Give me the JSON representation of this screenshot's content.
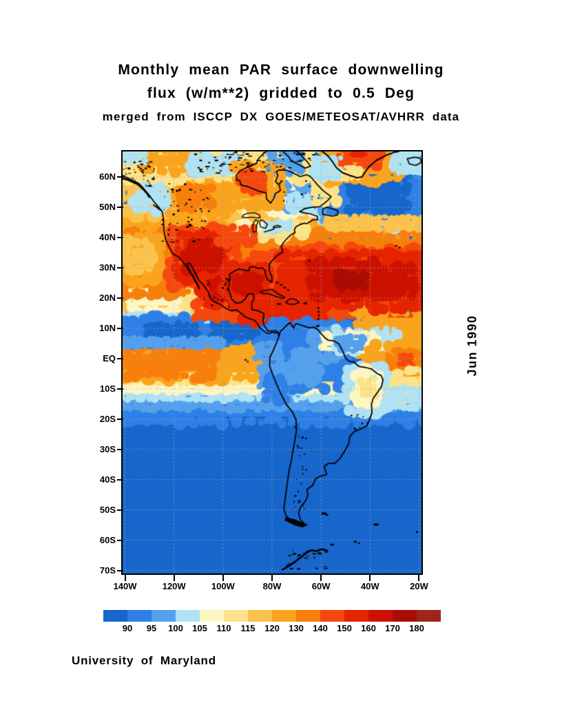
{
  "title": {
    "line1": "Monthly mean PAR surface downwelling",
    "line2": "flux (w/m**2) gridded to 0.5 Deg",
    "line3": "merged from ISCCP DX GOES/METEOSAT/AVHRR data"
  },
  "date_label": "Jun 1990",
  "credit": "University of Maryland",
  "map": {
    "lat_ticks": [
      {
        "label": "60N",
        "lat": 60
      },
      {
        "label": "50N",
        "lat": 50
      },
      {
        "label": "40N",
        "lat": 40
      },
      {
        "label": "30N",
        "lat": 30
      },
      {
        "label": "20N",
        "lat": 20
      },
      {
        "label": "10N",
        "lat": 10
      },
      {
        "label": "EQ",
        "lat": 0
      },
      {
        "label": "10S",
        "lat": -10
      },
      {
        "label": "20S",
        "lat": -20
      },
      {
        "label": "30S",
        "lat": -30
      },
      {
        "label": "40S",
        "lat": -40
      },
      {
        "label": "50S",
        "lat": -50
      },
      {
        "label": "60S",
        "lat": -60
      },
      {
        "label": "70S",
        "lat": -70
      }
    ],
    "lon_ticks": [
      {
        "label": "140W",
        "lon": -140
      },
      {
        "label": "120W",
        "lon": -120
      },
      {
        "label": "100W",
        "lon": -100
      },
      {
        "label": "80W",
        "lon": -80
      },
      {
        "label": "60W",
        "lon": -60
      },
      {
        "label": "40W",
        "lon": -40
      },
      {
        "label": "20W",
        "lon": -20
      }
    ]
  },
  "colorbar": {
    "tick_labels": [
      "90",
      "95",
      "100",
      "105",
      "110",
      "115",
      "120",
      "130",
      "140",
      "150",
      "160",
      "170",
      "180"
    ]
  },
  "chart_data": {
    "type": "heatmap",
    "title": "Monthly mean PAR surface downwelling flux (w/m**2) gridded to 0.5 Deg",
    "subtitle": "merged from ISCCP DX GOES/METEOSAT/AVHRR data",
    "date": "Jun 1990",
    "units": "w/m**2",
    "lon_range": [
      -141,
      -19
    ],
    "lat_range": [
      -71,
      68.5
    ],
    "gridlines": {
      "lat_interval": 10,
      "lon_interval": 20,
      "style": "dotted"
    },
    "scale": {
      "thresholds": [
        90,
        95,
        100,
        105,
        110,
        115,
        120,
        130,
        140,
        150,
        160,
        170,
        180
      ],
      "colors": [
        "#1766cb",
        "#2e80e6",
        "#55a0ec",
        "#b0e2f3",
        "#fdf6c3",
        "#fce389",
        "#fbc34c",
        "#faa41d",
        "#f87f0b",
        "#f5480d",
        "#e62400",
        "#cc1100",
        "#a80d04",
        "#9e261b"
      ]
    },
    "regions": [
      {
        "name": "southern-ocean-base",
        "lon": [
          -141,
          -19
        ],
        "lat": [
          68.5,
          -71
        ],
        "value": 88
      },
      {
        "name": "s-transition-band-1",
        "lon": [
          -141,
          -19
        ],
        "lat": [
          -13.5,
          -20.5
        ],
        "value": 92
      },
      {
        "name": "s-transition-band-2",
        "lon": [
          -141,
          -19
        ],
        "lat": [
          -11,
          -16
        ],
        "value": 97
      },
      {
        "name": "s-transition-band-3",
        "lon": [
          -141,
          -19
        ],
        "lat": [
          -8.5,
          -13
        ],
        "value": 102
      },
      {
        "name": "s-transition-band-4",
        "lon": [
          -141,
          -19
        ],
        "lat": [
          -6.5,
          -10.5
        ],
        "value": 107
      },
      {
        "name": "s-transition-band-5",
        "lon": [
          -141,
          -30
        ],
        "lat": [
          -5,
          -8
        ],
        "value": 112
      },
      {
        "name": "equatorial-pacific",
        "lon": [
          -141,
          -77
        ],
        "lat": [
          6,
          -6
        ],
        "value": 125
      },
      {
        "name": "equatorial-pacific-core",
        "lon": [
          -141,
          -104
        ],
        "lat": [
          3,
          -5.5
        ],
        "value": 135
      },
      {
        "name": "ne-trade-band",
        "lon": [
          -141,
          -96
        ],
        "lat": [
          23,
          13
        ],
        "value": 117
      },
      {
        "name": "ne-trade-cream-1",
        "lon": [
          -138,
          -118
        ],
        "lat": [
          21.5,
          16.5
        ],
        "value": 107
      },
      {
        "name": "ne-trade-cream-2",
        "lon": [
          -116,
          -104
        ],
        "lat": [
          22,
          17
        ],
        "value": 112
      },
      {
        "name": "itcz-north-fringe",
        "lon": [
          -141,
          -88
        ],
        "lat": [
          14.5,
          11.5
        ],
        "value": 102
      },
      {
        "name": "itcz-pacific-blue",
        "lon": [
          -141,
          -77
        ],
        "lat": [
          13,
          6
        ],
        "value": 92
      },
      {
        "name": "itcz-dark-core-west",
        "lon": [
          -131,
          -111
        ],
        "lat": [
          11,
          7
        ],
        "value": 88
      },
      {
        "name": "itcz-dark-core-east",
        "lon": [
          -104,
          -86
        ],
        "lat": [
          12.5,
          7.5
        ],
        "value": 88
      },
      {
        "name": "itcz-south-fringe",
        "lon": [
          -141,
          -100
        ],
        "lat": [
          6.5,
          4
        ],
        "value": 97
      },
      {
        "name": "midlat-orange",
        "lon": [
          -141,
          -19
        ],
        "lat": [
          49,
          39
        ],
        "value": 125
      },
      {
        "name": "subtropical-orange",
        "lon": [
          -141,
          -19
        ],
        "lat": [
          41,
          22
        ],
        "value": 135
      },
      {
        "name": "pacific-west-lighter",
        "lon": [
          -141,
          -127
        ],
        "lat": [
          40,
          26
        ],
        "value": 125
      },
      {
        "name": "pacific-west-yellow",
        "lon": [
          -139,
          -130
        ],
        "lat": [
          38,
          30
        ],
        "value": 117
      },
      {
        "name": "red-sw-us-broad",
        "lon": [
          -121,
          -95
        ],
        "lat": [
          42,
          25
        ],
        "value": 145
      },
      {
        "name": "red-mexico-coast",
        "lon": [
          -110,
          -93
        ],
        "lat": [
          22,
          13.5
        ],
        "value": 145
      },
      {
        "name": "red-se-us",
        "lon": [
          -88,
          -75
        ],
        "lat": [
          34,
          24
        ],
        "value": 145
      },
      {
        "name": "red-atlantic-broad",
        "lon": [
          -79,
          -19
        ],
        "lat": [
          35.5,
          15
        ],
        "value": 145
      },
      {
        "name": "atl-east-orange",
        "lon": [
          -45,
          -19
        ],
        "lat": [
          15,
          3
        ],
        "value": 125
      },
      {
        "name": "red-caribbean",
        "lon": [
          -92,
          -59
        ],
        "lat": [
          22,
          12
        ],
        "value": 150
      },
      {
        "name": "dark-sw-us",
        "lon": [
          -118,
          -99
        ],
        "lat": [
          40,
          27.5
        ],
        "value": 155
      },
      {
        "name": "dark-sw-us-core",
        "lon": [
          -114,
          -102
        ],
        "lat": [
          38,
          30
        ],
        "value": 165
      },
      {
        "name": "dark-mexico",
        "lon": [
          -108,
          -96
        ],
        "lat": [
          27,
          18.5
        ],
        "value": 155
      },
      {
        "name": "dark-mexico-core",
        "lon": [
          -105,
          -100
        ],
        "lat": [
          26,
          20
        ],
        "value": 165
      },
      {
        "name": "dark-gulf-of-mexico",
        "lon": [
          -98,
          -82
        ],
        "lat": [
          29.5,
          21
        ],
        "value": 155
      },
      {
        "name": "dark-gulf-core",
        "lon": [
          -95,
          -85
        ],
        "lat": [
          27.5,
          22.5
        ],
        "value": 165
      },
      {
        "name": "dark-atlantic-subtropical",
        "lon": [
          -76,
          -19
        ],
        "lat": [
          34,
          17.5
        ],
        "value": 155
      },
      {
        "name": "dark-atlantic-core-west",
        "lon": [
          -64,
          -38
        ],
        "lat": [
          31,
          21
        ],
        "value": 165
      },
      {
        "name": "dark-atlantic-core-east",
        "lon": [
          -36,
          -23
        ],
        "lat": [
          30,
          21.5
        ],
        "value": 165
      },
      {
        "name": "dark-atlantic-maximum",
        "lon": [
          -53,
          -42
        ],
        "lat": [
          28,
          23.5
        ],
        "value": 172
      },
      {
        "name": "great-lakes-yellow",
        "lon": [
          -95,
          -67
        ],
        "lat": [
          48.5,
          40.5
        ],
        "value": 112
      },
      {
        "name": "great-lakes-cream",
        "lon": [
          -92,
          -83
        ],
        "lat": [
          47.5,
          43.5
        ],
        "value": 107
      },
      {
        "name": "northeast-lightblue",
        "lon": [
          -83,
          -73
        ],
        "lat": [
          46.5,
          42.5
        ],
        "value": 102
      },
      {
        "name": "plains-red-tongue",
        "lon": [
          -102,
          -88
        ],
        "lat": [
          43,
          38
        ],
        "value": 140
      },
      {
        "name": "canada-yellow",
        "lon": [
          -141,
          -58
        ],
        "lat": [
          61,
          48
        ],
        "value": 117
      },
      {
        "name": "prairies-orange",
        "lon": [
          -123,
          -96
        ],
        "lat": [
          59.5,
          48.5
        ],
        "value": 125
      },
      {
        "name": "prairies-core",
        "lon": [
          -118,
          -105
        ],
        "lat": [
          56.5,
          50.5
        ],
        "value": 135
      },
      {
        "name": "bc-coast-cyan",
        "lon": [
          -135,
          -124
        ],
        "lat": [
          57.5,
          49.5
        ],
        "value": 102
      },
      {
        "name": "quebec-cream",
        "lon": [
          -81,
          -58
        ],
        "lat": [
          60,
          48.5
        ],
        "value": 107
      },
      {
        "name": "quebec-blue",
        "lon": [
          -76,
          -63
        ],
        "lat": [
          57,
          50
        ],
        "value": 97
      },
      {
        "name": "quebec-cyan",
        "lon": [
          -72,
          -60
        ],
        "lat": [
          54,
          49
        ],
        "value": 102
      },
      {
        "name": "arctic-band",
        "lon": [
          -141,
          -58
        ],
        "lat": [
          68.5,
          60
        ],
        "value": 112
      },
      {
        "name": "arctic-orange-west",
        "lon": [
          -133,
          -111
        ],
        "lat": [
          68.5,
          62.5
        ],
        "value": 125
      },
      {
        "name": "arctic-cyan",
        "lon": [
          -113,
          -95
        ],
        "lat": [
          67,
          61.5
        ],
        "value": 102
      },
      {
        "name": "foxe-basin-blue",
        "lon": [
          -81,
          -69
        ],
        "lat": [
          67.5,
          62
        ],
        "value": 97
      },
      {
        "name": "arctic-nw-corner",
        "lon": [
          -141,
          -132
        ],
        "lat": [
          68.5,
          65
        ],
        "value": 102
      },
      {
        "name": "hudson-bay-orange",
        "lon": [
          -94,
          -77.5
        ],
        "lat": [
          63.5,
          51.5
        ],
        "value": 125
      },
      {
        "name": "hudson-bay-red",
        "lon": [
          -92,
          -84
        ],
        "lat": [
          61,
          55.5
        ],
        "value": 140
      },
      {
        "name": "natl-ring-cyan",
        "lon": [
          -60,
          -19
        ],
        "lat": [
          65.5,
          44.5
        ],
        "value": 102
      },
      {
        "name": "natl-ring-lightblue",
        "lon": [
          -58,
          -19
        ],
        "lat": [
          64.5,
          45.5
        ],
        "value": 97
      },
      {
        "name": "natl-blue",
        "lon": [
          -56,
          -20
        ],
        "lat": [
          63,
          47
        ],
        "value": 92
      },
      {
        "name": "natl-dark-core",
        "lon": [
          -48,
          -26
        ],
        "lat": [
          61,
          50
        ],
        "value": 88
      },
      {
        "name": "natl-south-yellow",
        "lon": [
          -58,
          -19
        ],
        "lat": [
          46.5,
          43
        ],
        "value": 117
      },
      {
        "name": "labrador-coast-yellow",
        "lon": [
          -62,
          -54
        ],
        "lat": [
          60,
          52
        ],
        "value": 112
      },
      {
        "name": "greenland-orange",
        "lon": [
          -58,
          -29
        ],
        "lat": [
          68.5,
          59.5
        ],
        "value": 125
      },
      {
        "name": "greenland-red",
        "lon": [
          -52,
          -36
        ],
        "lat": [
          68.5,
          64
        ],
        "value": 145
      },
      {
        "name": "greenland-top-red",
        "lon": [
          -48,
          -41
        ],
        "lat": [
          68.5,
          66.5
        ],
        "value": 155
      },
      {
        "name": "greenland-coast-cream",
        "lon": [
          -55,
          -44
        ],
        "lat": [
          63,
          59.8
        ],
        "value": 112
      },
      {
        "name": "east-greenland-cyan",
        "lon": [
          -29,
          -19
        ],
        "lat": [
          68.5,
          62
        ],
        "value": 102
      },
      {
        "name": "davis-strait-cyan",
        "lon": [
          -62,
          -53
        ],
        "lat": [
          66,
          60.5
        ],
        "value": 102
      },
      {
        "name": "amazon-blue",
        "lon": [
          -79,
          -49
        ],
        "lat": [
          11,
          -9
        ],
        "value": 92
      },
      {
        "name": "amazon-lightblue-west",
        "lon": [
          -73,
          -62
        ],
        "lat": [
          2,
          -7
        ],
        "value": 97
      },
      {
        "name": "amazon-lightblue-north",
        "lon": [
          -63,
          -52
        ],
        "lat": [
          9,
          1
        ],
        "value": 97
      },
      {
        "name": "guyana-cream",
        "lon": [
          -59,
          -52
        ],
        "lat": [
          7.5,
          3.5
        ],
        "value": 107
      },
      {
        "name": "colombia-bight-blue",
        "lon": [
          -84,
          -75
        ],
        "lat": [
          9,
          1
        ],
        "value": 92
      },
      {
        "name": "panama-fringe",
        "lon": [
          -86,
          -77
        ],
        "lat": [
          4.5,
          0
        ],
        "value": 97
      },
      {
        "name": "peru-coastal-lightblue",
        "lon": [
          -84,
          -75
        ],
        "lat": [
          -3,
          -15
        ],
        "value": 97
      },
      {
        "name": "peru-coastal-blue",
        "lon": [
          -82,
          -75.5
        ],
        "lat": [
          -6,
          -14
        ],
        "value": 92
      },
      {
        "name": "atl-itcz-cyan",
        "lon": [
          -53,
          -30
        ],
        "lat": [
          9,
          3
        ],
        "value": 102
      },
      {
        "name": "atl-itcz-cream",
        "lon": [
          -49,
          -37
        ],
        "lat": [
          8,
          3.5
        ],
        "value": 107
      },
      {
        "name": "atl-itcz-lightblue",
        "lon": [
          -53,
          -43
        ],
        "lat": [
          7,
          3
        ],
        "value": 97
      },
      {
        "name": "atl-equatorial-orange",
        "lon": [
          -40,
          -19
        ],
        "lat": [
          4,
          -6
        ],
        "value": 125
      },
      {
        "name": "atl-equatorial-core",
        "lon": [
          -32,
          -21
        ],
        "lat": [
          2,
          -3.5
        ],
        "value": 135
      },
      {
        "name": "atl-equatorial-red-spot",
        "lon": [
          -28,
          -23
        ],
        "lat": [
          1,
          -2
        ],
        "value": 145
      },
      {
        "name": "atl-se-yellow",
        "lon": [
          -31,
          -19
        ],
        "lat": [
          -4.5,
          -12
        ],
        "value": 112
      },
      {
        "name": "atl-se-cyan",
        "lon": [
          -31,
          -19
        ],
        "lat": [
          -10.5,
          -15.5
        ],
        "value": 102
      },
      {
        "name": "east-brazil-cyan",
        "lon": [
          -48.5,
          -34
        ],
        "lat": [
          -3,
          -17.5
        ],
        "value": 102
      },
      {
        "name": "east-brazil-cream",
        "lon": [
          -45.5,
          -36.5
        ],
        "lat": [
          -5,
          -13.5
        ],
        "value": 107
      },
      {
        "name": "east-brazil-pale",
        "lon": [
          -43.5,
          -38.5
        ],
        "lat": [
          -7,
          -11.5
        ],
        "value": 112
      }
    ]
  }
}
